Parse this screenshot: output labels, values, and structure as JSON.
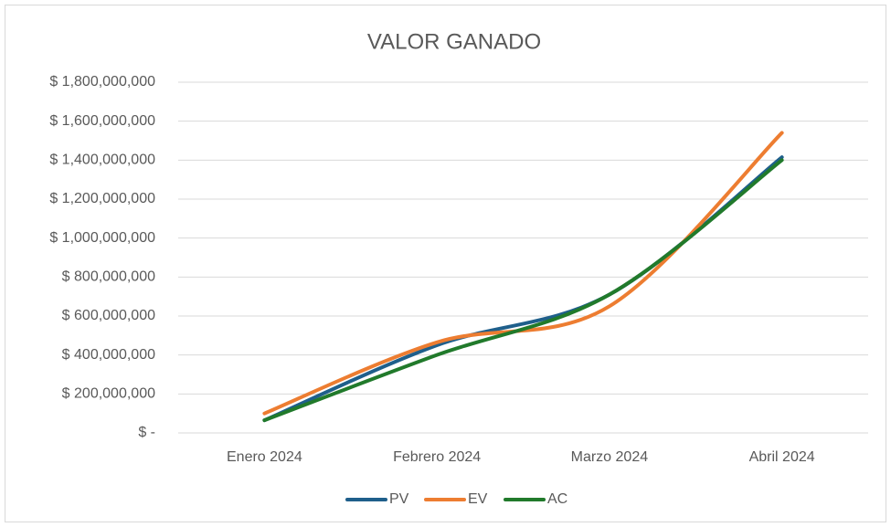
{
  "chart_data": {
    "type": "line",
    "title": "VALOR GANADO",
    "categories": [
      "Enero 2024",
      "Febrero 2024",
      "Marzo 2024",
      "Abril 2024"
    ],
    "series": [
      {
        "name": "PV",
        "color": "#1f5f8b",
        "values": [
          65000000,
          450000000,
          710000000,
          1415000000
        ]
      },
      {
        "name": "EV",
        "color": "#ed7d31",
        "values": [
          100000000,
          465000000,
          650000000,
          1540000000
        ]
      },
      {
        "name": "AC",
        "color": "#217a2b",
        "values": [
          65000000,
          400000000,
          710000000,
          1400000000
        ]
      }
    ],
    "ylim": [
      0,
      1800000000
    ],
    "yticks": [
      {
        "value": 0,
        "label": "$ -"
      },
      {
        "value": 200000000,
        "label": "$ 200,000,000"
      },
      {
        "value": 400000000,
        "label": "$ 400,000,000"
      },
      {
        "value": 600000000,
        "label": "$ 600,000,000"
      },
      {
        "value": 800000000,
        "label": "$ 800,000,000"
      },
      {
        "value": 1000000000,
        "label": "$ 1,000,000,000"
      },
      {
        "value": 1200000000,
        "label": "$ 1,200,000,000"
      },
      {
        "value": 1400000000,
        "label": "$ 1,400,000,000"
      },
      {
        "value": 1600000000,
        "label": "$ 1,600,000,000"
      },
      {
        "value": 1800000000,
        "label": "$ 1,800,000,000"
      }
    ],
    "grid": true,
    "smooth": true,
    "legend": "bottom"
  }
}
